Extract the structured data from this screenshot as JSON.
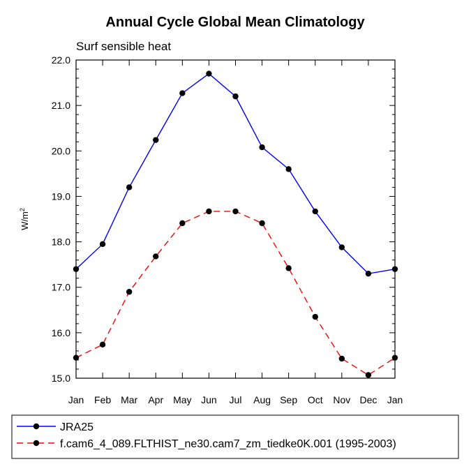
{
  "chart_data": {
    "type": "line",
    "title": "Annual Cycle Global Mean Climatology",
    "subtitle": "Surf sensible heat",
    "ylabel": "W/m",
    "ylabel_sup": "2",
    "xlabel": "",
    "categories": [
      "Jan",
      "Feb",
      "Mar",
      "Apr",
      "May",
      "Jun",
      "Jul",
      "Aug",
      "Sep",
      "Oct",
      "Nov",
      "Dec",
      "Jan"
    ],
    "ylim": [
      15.0,
      22.0
    ],
    "yticks": [
      "15.0",
      "16.0",
      "17.0",
      "18.0",
      "19.0",
      "20.0",
      "21.0",
      "22.0"
    ],
    "legend_position": "bottom",
    "series": [
      {
        "name": "JRA25",
        "color": "#0000ff",
        "dash": "solid",
        "values": [
          17.4,
          17.95,
          19.2,
          20.24,
          21.27,
          21.7,
          21.2,
          20.08,
          19.6,
          18.67,
          17.88,
          17.3,
          17.4
        ]
      },
      {
        "name": "f.cam6_4_089.FLTHIST_ne30.cam7_zm_tiedke0K.001 (1995-2003)",
        "color": "#ff0000",
        "dash": "dashed",
        "values": [
          15.45,
          15.74,
          16.9,
          17.68,
          18.41,
          18.67,
          18.67,
          18.41,
          17.42,
          16.35,
          15.43,
          15.07,
          15.45
        ]
      }
    ]
  }
}
